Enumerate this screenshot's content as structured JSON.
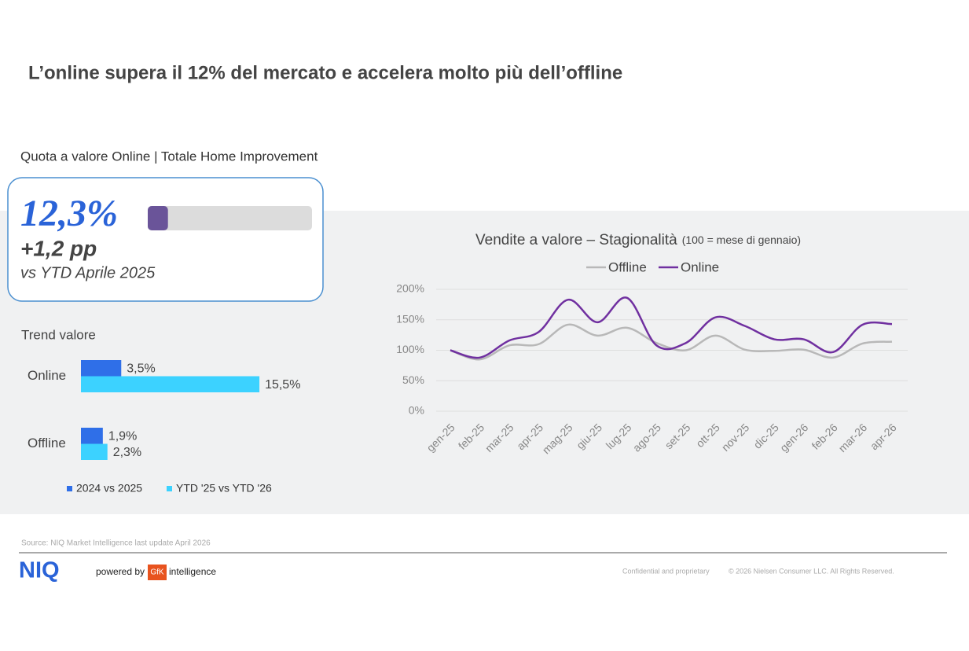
{
  "header": {
    "title": "L’online supera il 12% del mercato e accelera molto più dell’offline",
    "subtitle": "Quota a valore Online | Totale Home Improvement"
  },
  "kpi": {
    "value": 12.3,
    "value_label": "12,3%",
    "range": [
      0,
      100
    ],
    "color": "#6a5499",
    "change": "+1,2 pp",
    "comparison": "vs YTD Aprile 2025"
  },
  "chart_data": [
    {
      "type": "bar",
      "orientation": "horizontal",
      "title": "Trend valore",
      "categories": [
        "Online",
        "Offline"
      ],
      "xlim": [
        0,
        20
      ],
      "series": [
        {
          "name": "2024 vs 2025",
          "color": "#2f6fe8",
          "values": [
            3.5,
            1.9
          ],
          "value_labels": [
            "3,5%",
            "1,9%"
          ]
        },
        {
          "name": "YTD '25 vs YTD '26",
          "color": "#3cd2ff",
          "values": [
            15.5,
            2.3
          ],
          "value_labels": [
            "15,5%",
            "2,3%"
          ]
        }
      ]
    },
    {
      "type": "line",
      "title": "Vendite a valore – Stagionalità",
      "subtitle": "(100 = mese di gennaio)",
      "categories": [
        "gen-25",
        "feb-25",
        "mar-25",
        "apr-25",
        "mag-25",
        "giu-25",
        "lug-25",
        "ago-25",
        "set-25",
        "ott-25",
        "nov-25",
        "dic-25",
        "gen-26",
        "feb-26",
        "mar-26",
        "apr-26"
      ],
      "ylim": [
        0,
        200
      ],
      "yticks": [
        {
          "value": 0,
          "label": "0%"
        },
        {
          "value": 50,
          "label": "50%"
        },
        {
          "value": 100,
          "label": "100%"
        },
        {
          "value": 150,
          "label": "150%"
        },
        {
          "value": 200,
          "label": "200%"
        }
      ],
      "grid": true,
      "legend": "top",
      "series": [
        {
          "name": "Offline",
          "color": "#b8b8b8",
          "values": [
            100,
            85,
            108,
            110,
            142,
            124,
            137,
            112,
            100,
            124,
            101,
            99,
            101,
            88,
            111,
            114
          ]
        },
        {
          "name": "Online",
          "color": "#7030a0",
          "values": [
            100,
            88,
            116,
            130,
            183,
            146,
            186,
            108,
            112,
            154,
            140,
            118,
            118,
            97,
            142,
            143
          ]
        }
      ]
    }
  ],
  "footer": {
    "source": "Source: NIQ Market Intelligence last update April 2026",
    "logo": "NIQ",
    "powered": "powered by",
    "gfk": "GfK",
    "intelligence": "intelligence",
    "confidential": "Confidential and proprietary",
    "copyright": "© 2026 Nielsen Consumer LLC. All Rights Reserved."
  }
}
